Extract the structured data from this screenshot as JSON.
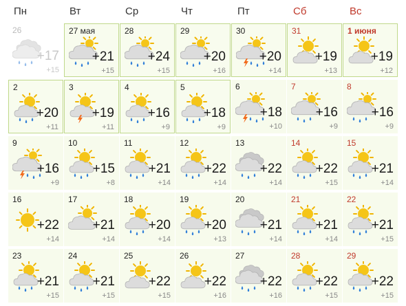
{
  "weekdays": [
    {
      "label": "Пн",
      "weekend": false
    },
    {
      "label": "Вт",
      "weekend": false
    },
    {
      "label": "Ср",
      "weekend": false
    },
    {
      "label": "Чт",
      "weekend": false
    },
    {
      "label": "Пт",
      "weekend": false
    },
    {
      "label": "Сб",
      "weekend": true
    },
    {
      "label": "Вс",
      "weekend": true
    }
  ],
  "days": [
    {
      "day": "26",
      "max": "+17",
      "min": "+15",
      "icon": "cloud-rain-icon",
      "state": "past",
      "weekend": false
    },
    {
      "day": "27 мая",
      "max": "+21",
      "min": "+15",
      "icon": "cloud-sun-rain-icon",
      "state": "current",
      "weekend": false
    },
    {
      "day": "28",
      "max": "+24",
      "min": "+15",
      "icon": "cloud-sun-rain-icon",
      "state": "current",
      "weekend": false
    },
    {
      "day": "29",
      "max": "+20",
      "min": "+16",
      "icon": "cloud-sun-rain-icon",
      "state": "current",
      "weekend": false
    },
    {
      "day": "30",
      "max": "+20",
      "min": "+14",
      "icon": "cloud-sun-storm-icon",
      "state": "current",
      "weekend": false
    },
    {
      "day": "31",
      "max": "+19",
      "min": "+13",
      "icon": "sun-cloud-icon",
      "state": "current",
      "weekend": true
    },
    {
      "day": "1 июня",
      "max": "+19",
      "min": "+12",
      "icon": "sun-cloud-icon",
      "state": "current",
      "weekend": true,
      "bold": true
    },
    {
      "day": "2",
      "max": "+20",
      "min": "+11",
      "icon": "sun-cloud-rain-icon",
      "state": "current",
      "weekend": false
    },
    {
      "day": "3",
      "max": "+19",
      "min": "+11",
      "icon": "sun-cloud-storm-icon",
      "state": "current",
      "weekend": false
    },
    {
      "day": "4",
      "max": "+16",
      "min": "+9",
      "icon": "sun-cloud-rain-icon",
      "state": "current",
      "weekend": false
    },
    {
      "day": "5",
      "max": "+18",
      "min": "+9",
      "icon": "sun-cloud-rain-icon",
      "state": "current",
      "weekend": false
    },
    {
      "day": "6",
      "max": "+18",
      "min": "+10",
      "icon": "cloud-sun-storm-icon",
      "state": "normal",
      "weekend": false
    },
    {
      "day": "7",
      "max": "+16",
      "min": "+9",
      "icon": "cloud-sun-rain-icon",
      "state": "normal",
      "weekend": true
    },
    {
      "day": "8",
      "max": "+16",
      "min": "+9",
      "icon": "cloud-sun-rain-icon",
      "state": "normal",
      "weekend": true
    },
    {
      "day": "9",
      "max": "+16",
      "min": "+9",
      "icon": "cloud-sun-storm-icon",
      "state": "normal",
      "weekend": false
    },
    {
      "day": "10",
      "max": "+15",
      "min": "+8",
      "icon": "sun-cloud-rain-icon",
      "state": "normal",
      "weekend": false
    },
    {
      "day": "11",
      "max": "+21",
      "min": "+14",
      "icon": "sun-cloud-rain-icon",
      "state": "normal",
      "weekend": false
    },
    {
      "day": "12",
      "max": "+22",
      "min": "+14",
      "icon": "sun-cloud-rain-icon",
      "state": "normal",
      "weekend": false
    },
    {
      "day": "13",
      "max": "+22",
      "min": "+14",
      "icon": "cloud-rain-icon",
      "state": "normal",
      "weekend": false
    },
    {
      "day": "14",
      "max": "+22",
      "min": "+15",
      "icon": "sun-cloud-rain-icon",
      "state": "normal",
      "weekend": true
    },
    {
      "day": "15",
      "max": "+21",
      "min": "+14",
      "icon": "sun-cloud-rain-icon",
      "state": "normal",
      "weekend": true
    },
    {
      "day": "16",
      "max": "+22",
      "min": "+14",
      "icon": "sun-icon",
      "state": "normal",
      "weekend": false
    },
    {
      "day": "17",
      "max": "+21",
      "min": "+14",
      "icon": "cloud-sun-icon",
      "state": "normal",
      "weekend": false
    },
    {
      "day": "18",
      "max": "+20",
      "min": "+14",
      "icon": "sun-cloud-rain-icon",
      "state": "normal",
      "weekend": false
    },
    {
      "day": "19",
      "max": "+20",
      "min": "+13",
      "icon": "sun-cloud-rain-icon",
      "state": "normal",
      "weekend": false
    },
    {
      "day": "20",
      "max": "+21",
      "min": "+14",
      "icon": "cloud-rain-icon",
      "state": "normal",
      "weekend": false
    },
    {
      "day": "21",
      "max": "+21",
      "min": "+14",
      "icon": "sun-cloud-rain-icon",
      "state": "normal",
      "weekend": true
    },
    {
      "day": "22",
      "max": "+21",
      "min": "+15",
      "icon": "sun-cloud-rain-icon",
      "state": "normal",
      "weekend": true
    },
    {
      "day": "23",
      "max": "+21",
      "min": "+15",
      "icon": "sun-cloud-rain-icon",
      "state": "normal",
      "weekend": false
    },
    {
      "day": "24",
      "max": "+21",
      "min": "+15",
      "icon": "sun-cloud-rain-icon",
      "state": "normal",
      "weekend": false
    },
    {
      "day": "25",
      "max": "+22",
      "min": "+15",
      "icon": "sun-cloud-icon",
      "state": "normal",
      "weekend": false
    },
    {
      "day": "26",
      "max": "+22",
      "min": "+16",
      "icon": "sun-cloud-icon",
      "state": "normal",
      "weekend": false
    },
    {
      "day": "27",
      "max": "+22",
      "min": "+16",
      "icon": "cloud-rain-icon",
      "state": "normal",
      "weekend": false
    },
    {
      "day": "28",
      "max": "+22",
      "min": "+15",
      "icon": "sun-cloud-rain-icon",
      "state": "normal",
      "weekend": true
    },
    {
      "day": "29",
      "max": "+22",
      "min": "+15",
      "icon": "sun-cloud-rain-icon",
      "state": "normal",
      "weekend": true
    }
  ]
}
